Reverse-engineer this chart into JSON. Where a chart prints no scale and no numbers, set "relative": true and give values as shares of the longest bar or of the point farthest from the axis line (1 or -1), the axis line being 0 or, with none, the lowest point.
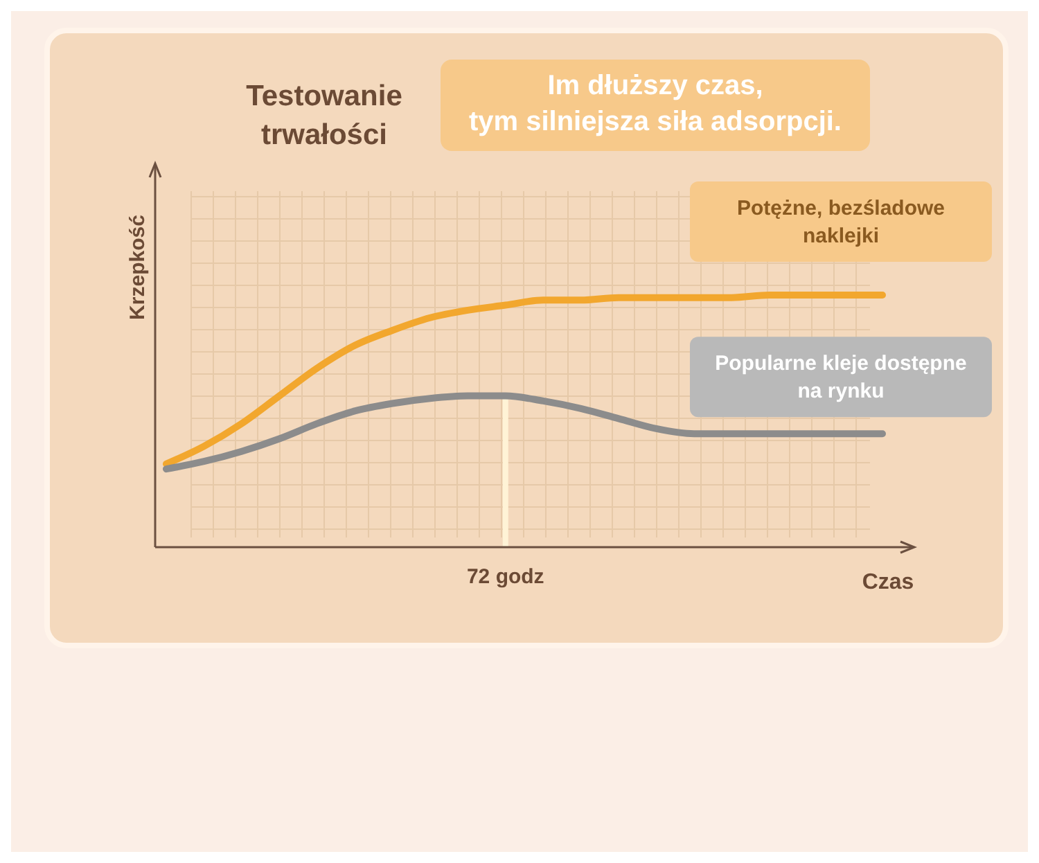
{
  "chart_data": {
    "type": "line",
    "relative": true,
    "title": "Testowanie trwałości",
    "ylabel": "Krzepkość",
    "xlabel": "Czas",
    "grid": true,
    "annotations": [
      "Im dłuższy czas, tym silniejsza siła adsorpcji.",
      "72 godz"
    ],
    "categories": [
      null,
      null,
      null,
      null,
      null,
      null,
      null,
      null,
      null,
      null,
      null,
      null,
      null,
      null,
      null,
      null,
      null,
      null,
      null,
      null
    ],
    "series": [
      {
        "name": "Potężne, bezśladowe naklejki",
        "color": "#f2a72e",
        "values": [
          0.33,
          0.4,
          0.49,
          0.6,
          0.71,
          0.8,
          0.86,
          0.91,
          0.94,
          0.96,
          0.98,
          0.98,
          0.99,
          0.99,
          0.99,
          0.99,
          1,
          1,
          1,
          1
        ]
      },
      {
        "name": "Popularne kleje dostępne na rynku",
        "color": "#8c8c8c",
        "values": [
          0.31,
          0.34,
          0.38,
          0.43,
          0.49,
          0.54,
          0.57,
          0.59,
          0.6,
          0.6,
          0.58,
          0.55,
          0.51,
          0.47,
          0.45,
          0.45,
          0.45,
          0.45,
          0.45,
          0.45
        ]
      }
    ]
  }
}
